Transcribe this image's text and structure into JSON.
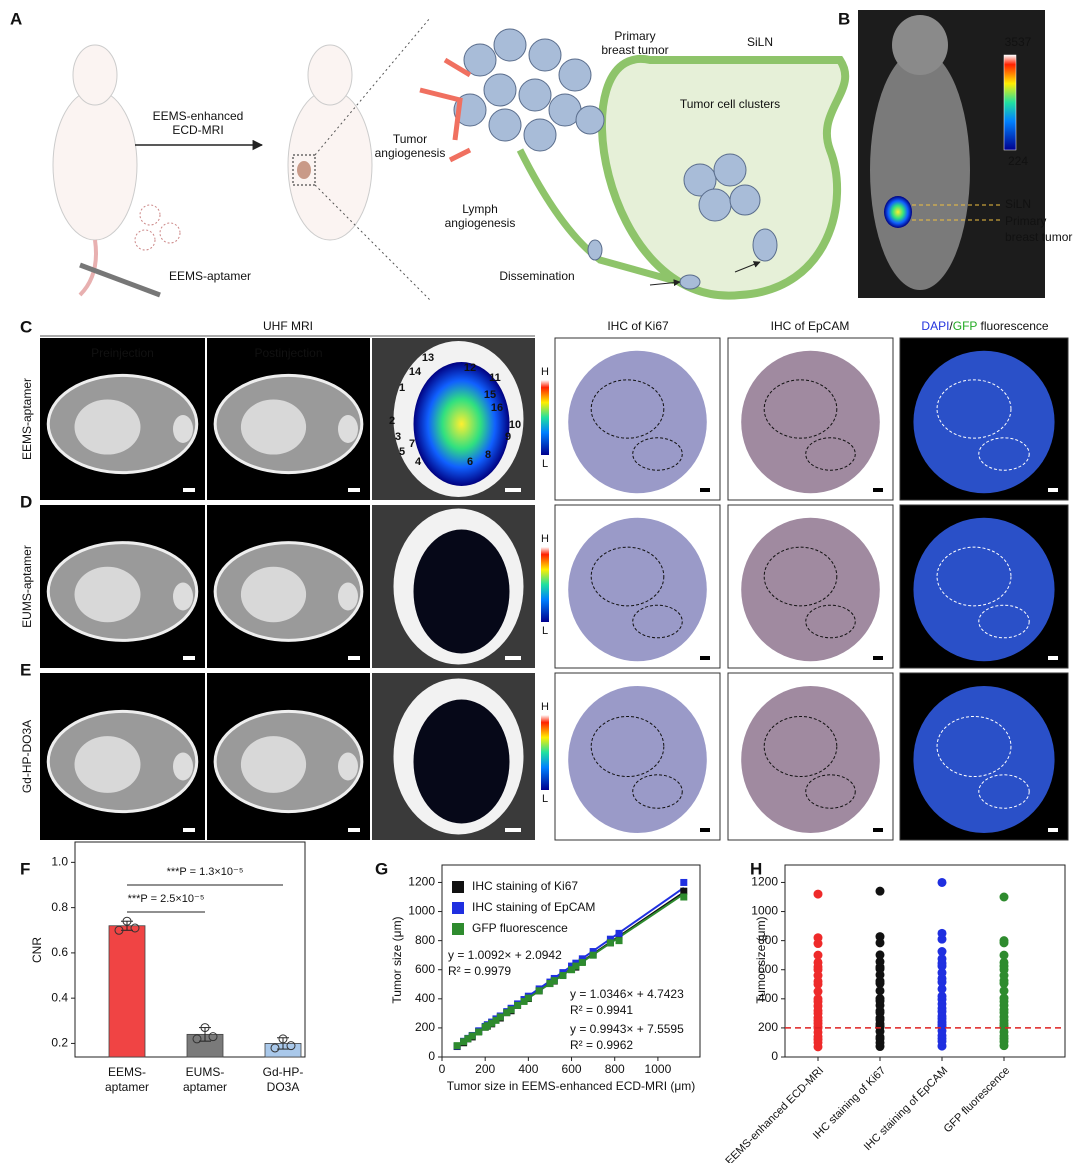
{
  "panel_a": {
    "letter": "A",
    "arrow_label": [
      "EEMS-enhanced",
      "ECD-MRI"
    ],
    "injection": "EEMS-aptamer",
    "primary": [
      "Primary",
      "breast tumor"
    ],
    "siln": "SiLN",
    "clusters": "Tumor cell clusters",
    "tumor_angio": [
      "Tumor",
      "angiogenesis"
    ],
    "lymph_angio": [
      "Lymph",
      "angiogenesis"
    ],
    "dissemination": "Dissemination"
  },
  "panel_b": {
    "letter": "B",
    "scale_max": "3537",
    "scale_min": "224",
    "siln": "SiLN",
    "primary": [
      "Primary",
      "breast tumor"
    ]
  },
  "imaging": {
    "letters": [
      "C",
      "D",
      "E"
    ],
    "mri_title": "UHF MRI",
    "columns": [
      "Preinjection",
      "Postinjection"
    ],
    "ihc_titles": [
      "IHC of Ki67",
      "IHC of EpCAM"
    ],
    "fluor_title": [
      "DAPI",
      "/",
      "GFP",
      " fluorescence"
    ],
    "rows": [
      "EEMS-aptamer",
      "EUMS-aptamer",
      "Gd-HP-DO3A"
    ],
    "scale_high": "H",
    "scale_low": "L",
    "regions": [
      "13",
      "14",
      "1",
      "12",
      "11",
      "15",
      "16",
      "2",
      "10",
      "3",
      "5",
      "7",
      "4",
      "6",
      "8",
      "9"
    ]
  },
  "chart_data": [
    {
      "type": "bar",
      "letter": "F",
      "ylabel": "CNR",
      "categories": [
        "EEMS-aptamer",
        "EUMS-aptamer",
        "Gd-HP-DO3A"
      ],
      "values": [
        0.72,
        0.24,
        0.2
      ],
      "errors": [
        0.02,
        0.03,
        0.025
      ],
      "points": [
        [
          0.7,
          0.74,
          0.71
        ],
        [
          0.22,
          0.27,
          0.23
        ],
        [
          0.18,
          0.22,
          0.19
        ]
      ],
      "colors": [
        "#f04444",
        "#7a7a7a",
        "#a9c8ea"
      ],
      "ylim": [
        0.14,
        1.09
      ],
      "yticks": [
        0.2,
        0.4,
        0.6,
        0.8,
        {
          "value": 1,
          "label": "1.0"
        }
      ],
      "annotations": [
        "***P = 2.5×10⁻⁵",
        "***P = 1.3×10⁻⁵"
      ]
    },
    {
      "type": "scatter",
      "letter": "G",
      "xlabel": "Tumor size in EEMS-enhanced ECD-MRI (μm)",
      "ylabel": "Tumor size (μm)",
      "x": [
        70,
        100,
        120,
        140,
        170,
        200,
        210,
        230,
        250,
        270,
        300,
        320,
        350,
        380,
        400,
        450,
        500,
        520,
        560,
        600,
        620,
        650,
        700,
        780,
        820,
        1120
      ],
      "series": [
        {
          "name": "IHC staining of Ki67",
          "color": "#111111",
          "values": [
            72,
            98,
            125,
            138,
            175,
            205,
            212,
            228,
            255,
            268,
            305,
            318,
            355,
            385,
            402,
            455,
            505,
            522,
            565,
            605,
            618,
            655,
            702,
            785,
            828,
            1140
          ]
        },
        {
          "name": "IHC staining of EpCAM",
          "color": "#1f2fe0",
          "values": [
            75,
            108,
            128,
            148,
            180,
            210,
            222,
            240,
            262,
            282,
            312,
            335,
            365,
            395,
            418,
            468,
            515,
            540,
            580,
            625,
            645,
            675,
            725,
            810,
            850,
            1200
          ]
        },
        {
          "name": "GFP fluorescence",
          "color": "#2e8b2e",
          "values": [
            78,
            105,
            126,
            145,
            172,
            205,
            215,
            232,
            252,
            275,
            305,
            325,
            355,
            382,
            405,
            455,
            505,
            525,
            560,
            600,
            625,
            650,
            700,
            785,
            800,
            1100
          ]
        }
      ],
      "fits": [
        {
          "equation": "y = 1.0092× + 2.0942",
          "r2": "R² = 0.9979",
          "slope": 1.0092,
          "intercept": 2.0942,
          "color": "#111111"
        },
        {
          "equation": "y = 1.0346× + 4.7423",
          "r2": "R² = 0.9941",
          "slope": 1.0346,
          "intercept": 4.7423,
          "color": "#1f2fe0"
        },
        {
          "equation": "y = 0.9943× + 7.5595",
          "r2": "R² = 0.9962",
          "slope": 0.9943,
          "intercept": 7.5595,
          "color": "#2e8b2e"
        }
      ],
      "xlim": [
        0,
        1195
      ],
      "xticks": [
        0,
        200,
        400,
        600,
        800,
        1000
      ],
      "ylim": [
        0,
        1320
      ],
      "yticks": [
        0,
        200,
        400,
        600,
        800,
        1000,
        1200
      ]
    },
    {
      "type": "strip",
      "letter": "H",
      "ylabel": "Tumor size (μm)",
      "categories": [
        "EEMS-enhanced ECD-MRI",
        "IHC staining of Ki67",
        "IHC staining of EpCAM",
        "GFP fluorescence"
      ],
      "colors": [
        "#ee2a2a",
        "#111111",
        "#1f2fe0",
        "#2e8b2e"
      ],
      "values": [
        [
          70,
          100,
          120,
          140,
          170,
          200,
          210,
          230,
          250,
          270,
          300,
          320,
          350,
          380,
          400,
          450,
          500,
          520,
          560,
          600,
          620,
          650,
          700,
          780,
          820,
          1120
        ],
        [
          72,
          98,
          125,
          138,
          175,
          205,
          212,
          228,
          255,
          268,
          305,
          318,
          355,
          385,
          402,
          455,
          505,
          522,
          565,
          605,
          618,
          655,
          702,
          785,
          828,
          1140
        ],
        [
          75,
          108,
          128,
          148,
          180,
          210,
          222,
          240,
          262,
          282,
          312,
          335,
          365,
          395,
          418,
          468,
          515,
          540,
          580,
          625,
          645,
          675,
          725,
          810,
          850,
          1200
        ],
        [
          78,
          105,
          126,
          145,
          172,
          205,
          215,
          232,
          252,
          275,
          305,
          325,
          355,
          382,
          405,
          455,
          505,
          525,
          560,
          600,
          625,
          650,
          700,
          785,
          800,
          1100
        ]
      ],
      "threshold": 200,
      "threshold_color": "#dd2222",
      "ylim": [
        0,
        1320
      ],
      "yticks": [
        0,
        200,
        400,
        600,
        800,
        1000,
        1200
      ]
    }
  ]
}
